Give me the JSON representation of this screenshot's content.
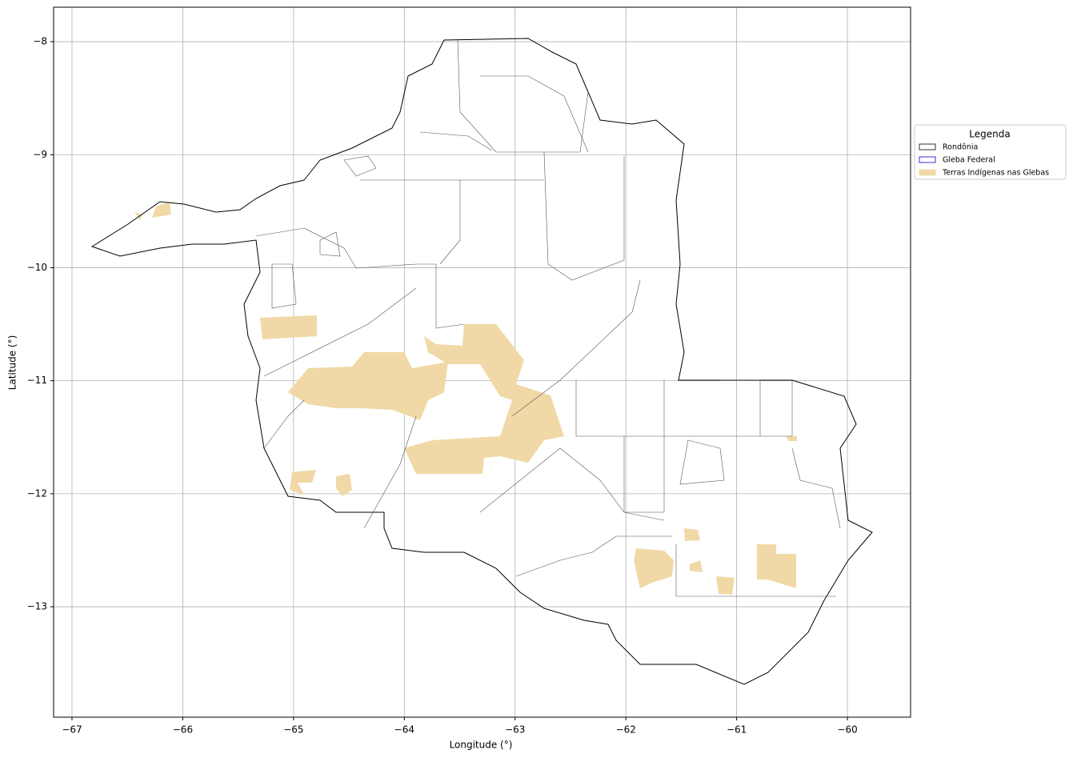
{
  "chart_data": {
    "type": "map",
    "xlabel": "Longitude (°)",
    "ylabel": "Latitude (°)",
    "xlim": [
      -67.166,
      -59.43
    ],
    "ylim": [
      -13.977,
      -7.695
    ],
    "xticks": [
      {
        "value": -67,
        "label": "−67"
      },
      {
        "value": -66,
        "label": "−66"
      },
      {
        "value": -65,
        "label": "−65"
      },
      {
        "value": -64,
        "label": "−64"
      },
      {
        "value": -63,
        "label": "−63"
      },
      {
        "value": -62,
        "label": "−62"
      },
      {
        "value": -61,
        "label": "−61"
      },
      {
        "value": -60,
        "label": "−60"
      }
    ],
    "yticks": [
      {
        "value": -8,
        "label": "−8"
      },
      {
        "value": -9,
        "label": "−9"
      },
      {
        "value": -10,
        "label": "−10"
      },
      {
        "value": -11,
        "label": "−11"
      },
      {
        "value": -12,
        "label": "−12"
      },
      {
        "value": -13,
        "label": "−13"
      }
    ],
    "grid": true,
    "legend": {
      "title": "Legenda",
      "position": "right",
      "entries": [
        {
          "name": "Rondônia",
          "edgecolor": "#000000",
          "facecolor": "none"
        },
        {
          "name": "Gleba Federal",
          "edgecolor": "#0000cc",
          "facecolor": "none"
        },
        {
          "name": "Terras Indígenas nas Glebas",
          "edgecolor": "#f0d9a6",
          "facecolor": "#f0d9a6"
        }
      ]
    }
  }
}
